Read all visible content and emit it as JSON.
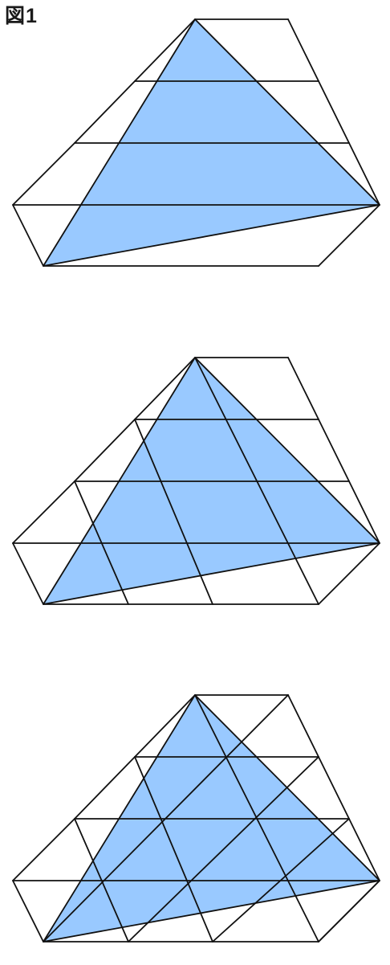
{
  "figure": {
    "label": "図1"
  },
  "colors": {
    "triangle_fill": "#99c9ff",
    "line": "#111111",
    "background": "#ffffff"
  },
  "panels": [
    {
      "id": "panel-1",
      "diagonal_families": []
    },
    {
      "id": "panel-2",
      "diagonal_families": [
        "backslash"
      ]
    },
    {
      "id": "panel-3",
      "diagonal_families": [
        "backslash",
        "slash"
      ]
    }
  ]
}
